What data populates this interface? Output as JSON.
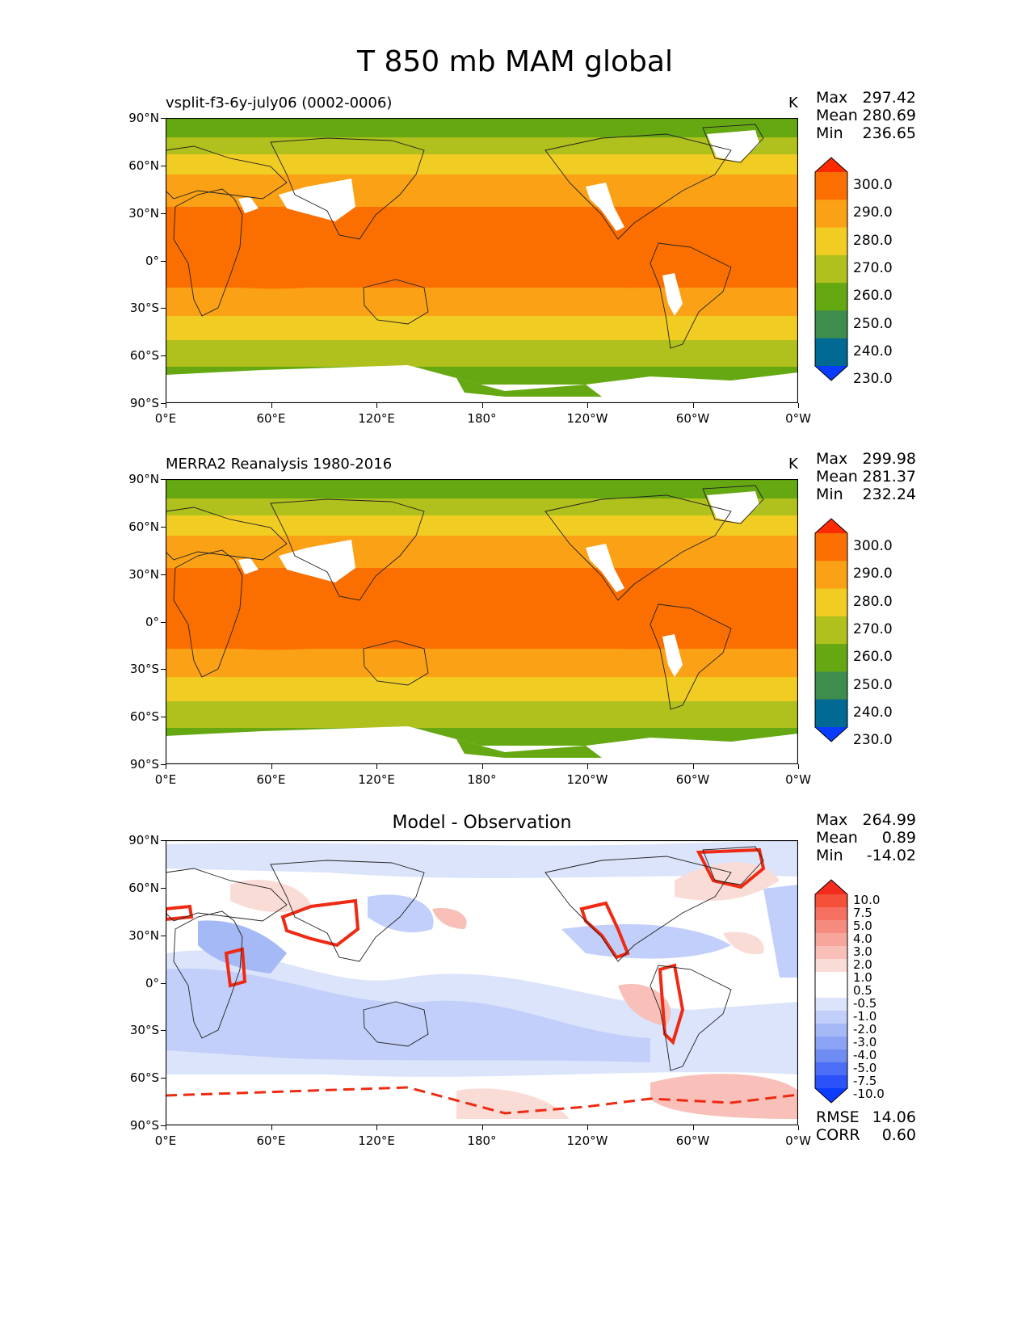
{
  "title": "T 850 mb MAM global",
  "panels": [
    {
      "label": "vsplit-f3-6y-july06 (0002-0006)",
      "units": "K",
      "stats": {
        "max_label": "Max",
        "max": "297.42",
        "mean_label": "Mean",
        "mean": "280.69",
        "min_label": "Min",
        "min": "236.65"
      }
    },
    {
      "label": "MERRA2 Reanalysis 1980-2016",
      "units": "K",
      "stats": {
        "max_label": "Max",
        "max": "299.98",
        "mean_label": "Mean",
        "mean": "281.37",
        "min_label": "Min",
        "min": "232.24"
      }
    },
    {
      "label": "Model - Observation",
      "units": "",
      "stats": {
        "max_label": "Max",
        "max": "264.99",
        "mean_label": "Mean",
        "mean": "0.89",
        "min_label": "Min",
        "min": "-14.02"
      },
      "footer": {
        "rmse_label": "RMSE",
        "rmse": "14.06",
        "corr_label": "CORR",
        "corr": "0.60"
      }
    }
  ],
  "axes": {
    "lat_ticks": [
      "90°N",
      "60°N",
      "30°N",
      "0°",
      "30°S",
      "60°S",
      "90°S"
    ],
    "lon_ticks": [
      "0°E",
      "60°E",
      "120°E",
      "180°",
      "120°W",
      "60°W",
      "0°W"
    ]
  },
  "colorbar_main": {
    "labels": [
      "300.0",
      "290.0",
      "280.0",
      "270.0",
      "260.0",
      "250.0",
      "240.0",
      "230.0"
    ],
    "colors": [
      "#ff2a00",
      "#fb6f00",
      "#fba116",
      "#f1cd24",
      "#b0c01c",
      "#66a812",
      "#3e8d4d",
      "#006994",
      "#0a3cff"
    ]
  },
  "colorbar_diff": {
    "labels": [
      "10.0",
      "7.5",
      "5.0",
      "4.0",
      "3.0",
      "2.0",
      "1.0",
      "0.5",
      "-0.5",
      "-1.0",
      "-2.0",
      "-3.0",
      "-4.0",
      "-5.0",
      "-7.5",
      "-10.0"
    ],
    "colors": [
      "#f42a1c",
      "#f4503a",
      "#f57060",
      "#f68b80",
      "#f7a69c",
      "#f8c0b8",
      "#fadcd6",
      "#ffffff",
      "#ffffff",
      "#dce4fb",
      "#c1cffa",
      "#a6b9f7",
      "#8ba3f4",
      "#6f8cf2",
      "#4c6ef6",
      "#2a52f8",
      "#0b3cff"
    ]
  }
}
